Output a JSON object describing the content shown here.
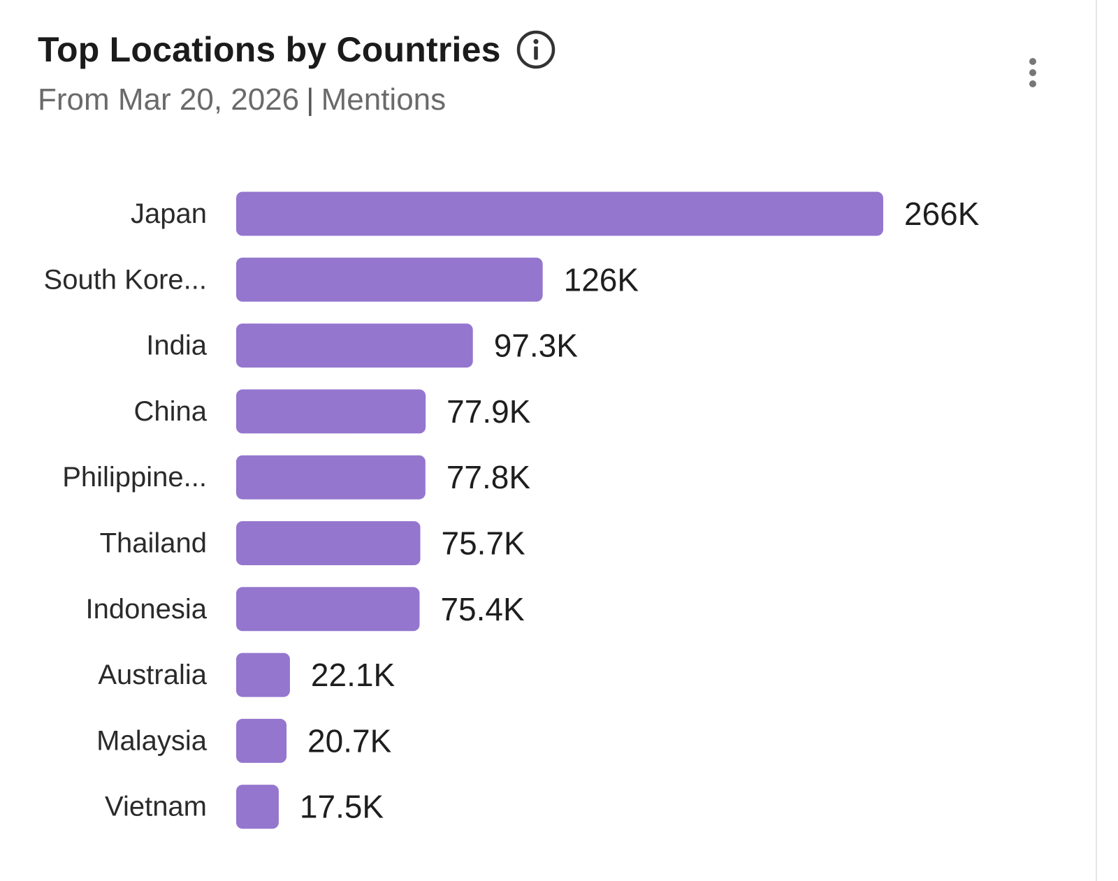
{
  "header": {
    "title": "Top Locations by Countries",
    "subtitle_date": "From Mar 20, 2026",
    "subtitle_separator": "|",
    "subtitle_metric": "Mentions",
    "info_icon": "info-circle-icon",
    "menu_icon": "more-vertical-icon"
  },
  "colors": {
    "bar": "#9476ce",
    "label": "#2a2a2a",
    "value": "#1e1e1e"
  },
  "chart_data": {
    "type": "bar",
    "orientation": "horizontal",
    "categories": [
      "Japan",
      "South Kore...",
      "India",
      "China",
      "Philippine...",
      "Thailand",
      "Indonesia",
      "Australia",
      "Malaysia",
      "Vietnam"
    ],
    "values": [
      266000,
      126000,
      97300,
      77900,
      77800,
      75700,
      75400,
      22100,
      20700,
      17500
    ],
    "value_labels": [
      "266K",
      "126K",
      "97.3K",
      "77.9K",
      "77.8K",
      "75.7K",
      "75.4K",
      "22.1K",
      "20.7K",
      "17.5K"
    ],
    "title": "Top Locations by Countries",
    "xlabel": "",
    "ylabel": "",
    "grid": false,
    "legend": "none"
  }
}
